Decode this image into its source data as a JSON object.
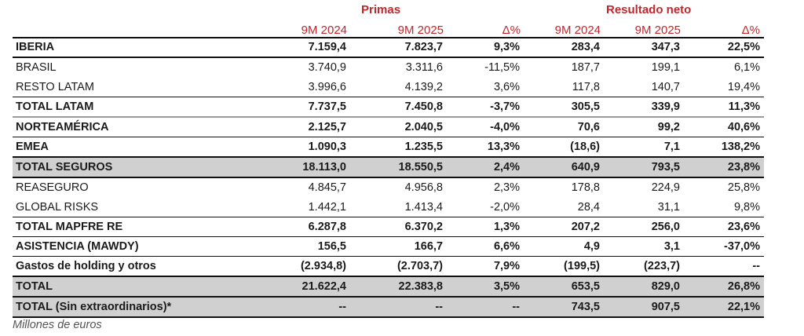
{
  "groups": {
    "primas": "Primas",
    "resultado": "Resultado neto"
  },
  "columns": [
    "9M 2024",
    "9M 2025",
    "Δ%",
    "9M 2024",
    "9M 2025",
    "Δ%"
  ],
  "rows": [
    {
      "label": "IBERIA",
      "bold": true,
      "shade": false,
      "values": [
        "7.159,4",
        "7.823,7",
        "9,3%",
        "283,4",
        "347,3",
        "22,5%"
      ]
    },
    {
      "label": "BRASIL",
      "bold": false,
      "shade": false,
      "values": [
        "3.740,9",
        "3.311,6",
        "-11,5%",
        "187,7",
        "199,1",
        "6,1%"
      ]
    },
    {
      "label": "RESTO LATAM",
      "bold": false,
      "shade": false,
      "values": [
        "3.996,6",
        "4.139,2",
        "3,6%",
        "117,8",
        "140,7",
        "19,4%"
      ]
    },
    {
      "label": "TOTAL LATAM",
      "bold": true,
      "shade": false,
      "values": [
        "7.737,5",
        "7.450,8",
        "-3,7%",
        "305,5",
        "339,9",
        "11,3%"
      ]
    },
    {
      "label": "NORTEAMÉRICA",
      "bold": true,
      "shade": false,
      "values": [
        "2.125,7",
        "2.040,5",
        "-4,0%",
        "70,6",
        "99,2",
        "40,6%"
      ]
    },
    {
      "label": "EMEA",
      "bold": true,
      "shade": false,
      "values": [
        "1.090,3",
        "1.235,5",
        "13,3%",
        "(18,6)",
        "7,1",
        "138,2%"
      ]
    },
    {
      "label": "TOTAL SEGUROS",
      "bold": true,
      "shade": true,
      "values": [
        "18.113,0",
        "18.550,5",
        "2,4%",
        "640,9",
        "793,5",
        "23,8%"
      ]
    },
    {
      "label": "REASEGURO",
      "bold": false,
      "shade": false,
      "values": [
        "4.845,7",
        "4.956,8",
        "2,3%",
        "178,8",
        "224,9",
        "25,8%"
      ]
    },
    {
      "label": "GLOBAL RISKS",
      "bold": false,
      "shade": false,
      "values": [
        "1.442,1",
        "1.413,4",
        "-2,0%",
        "28,4",
        "31,1",
        "9,8%"
      ]
    },
    {
      "label": "TOTAL MAPFRE RE",
      "bold": true,
      "shade": false,
      "values": [
        "6.287,8",
        "6.370,2",
        "1,3%",
        "207,2",
        "256,0",
        "23,6%"
      ]
    },
    {
      "label": "ASISTENCIA (MAWDY)",
      "bold": true,
      "shade": false,
      "values": [
        "156,5",
        "166,7",
        "6,6%",
        "4,9",
        "3,1",
        "-37,0%"
      ]
    },
    {
      "label": "Gastos de holding y otros",
      "bold": true,
      "shade": false,
      "values": [
        "(2.934,8)",
        "(2.703,7)",
        "7,9%",
        "(199,5)",
        "(223,7)",
        "--"
      ]
    },
    {
      "label": "TOTAL",
      "bold": true,
      "shade": true,
      "values": [
        "21.622,4",
        "22.383,8",
        "3,5%",
        "653,5",
        "829,0",
        "26,8%"
      ]
    },
    {
      "label": "TOTAL (Sin extraordinarios)*",
      "bold": true,
      "shade": true,
      "values": [
        "--",
        "--",
        "--",
        "743,5",
        "907,5",
        "22,1%"
      ]
    }
  ],
  "footnote": "Millones de euros",
  "colors": {
    "header": "#c0272d",
    "shade": "#d0d0d0"
  }
}
